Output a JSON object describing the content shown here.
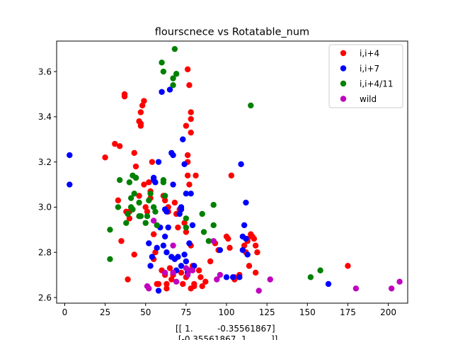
{
  "chart_data": {
    "type": "scatter",
    "title": "flourscnece vs Rotatable_num",
    "xlabel": "[[ 1.         -0.35561867]\n [-0.35561867  1.        ]]",
    "ylabel": "",
    "xlim": [
      -5,
      212
    ],
    "ylim": [
      2.575,
      3.735
    ],
    "xticks": [
      0,
      25,
      50,
      75,
      100,
      125,
      150,
      175,
      200
    ],
    "yticks": [
      2.6,
      2.8,
      3.0,
      3.2,
      3.4,
      3.6
    ],
    "grid": false,
    "legend_position": "top-right",
    "series": [
      {
        "name": "i,i+4",
        "color": "#ff0000",
        "points": [
          [
            25,
            3.22
          ],
          [
            31,
            3.28
          ],
          [
            34,
            3.27
          ],
          [
            33,
            3.03
          ],
          [
            35,
            2.85
          ],
          [
            37,
            3.5
          ],
          [
            37,
            3.49
          ],
          [
            38,
            2.98
          ],
          [
            40,
            2.98
          ],
          [
            40,
            2.95
          ],
          [
            39,
            2.68
          ],
          [
            43,
            3.24
          ],
          [
            43,
            2.79
          ],
          [
            44,
            3.18
          ],
          [
            46,
            3.05
          ],
          [
            46,
            3.38
          ],
          [
            47,
            3.42
          ],
          [
            47,
            3.37
          ],
          [
            47,
            3.36
          ],
          [
            48,
            3.45
          ],
          [
            49,
            3.47
          ],
          [
            49,
            3.1
          ],
          [
            50,
            3.0
          ],
          [
            51,
            2.98
          ],
          [
            52,
            3.11
          ],
          [
            53,
            3.07
          ],
          [
            53,
            3.04
          ],
          [
            54,
            3.2
          ],
          [
            55,
            2.88
          ],
          [
            55,
            2.77
          ],
          [
            56,
            2.8
          ],
          [
            57,
            2.66
          ],
          [
            58,
            2.66
          ],
          [
            60,
            2.72
          ],
          [
            61,
            3.05
          ],
          [
            62,
            3.03
          ],
          [
            62,
            2.7
          ],
          [
            63,
            2.66
          ],
          [
            63,
            2.64
          ],
          [
            64,
            3.0
          ],
          [
            64,
            2.98
          ],
          [
            65,
            2.73
          ],
          [
            66,
            2.68
          ],
          [
            67,
            2.7
          ],
          [
            68,
            3.02
          ],
          [
            69,
            2.97
          ],
          [
            70,
            2.91
          ],
          [
            71,
            2.99
          ],
          [
            72,
            2.71
          ],
          [
            73,
            2.66
          ],
          [
            74,
            2.93
          ],
          [
            75,
            3.36
          ],
          [
            75,
            2.89
          ],
          [
            75,
            2.69
          ],
          [
            76,
            3.61
          ],
          [
            76,
            3.23
          ],
          [
            76,
            3.2
          ],
          [
            76,
            3.14
          ],
          [
            77,
            3.54
          ],
          [
            77,
            3.1
          ],
          [
            78,
            3.42
          ],
          [
            78,
            3.39
          ],
          [
            78,
            3.33
          ],
          [
            78,
            2.83
          ],
          [
            78,
            2.64
          ],
          [
            79,
            2.74
          ],
          [
            80,
            2.66
          ],
          [
            80,
            2.65
          ],
          [
            81,
            3.14
          ],
          [
            83,
            2.72
          ],
          [
            84,
            2.69
          ],
          [
            85,
            2.65
          ],
          [
            87,
            2.67
          ],
          [
            90,
            2.76
          ],
          [
            93,
            2.84
          ],
          [
            95,
            2.81
          ],
          [
            100,
            2.87
          ],
          [
            101,
            2.86
          ],
          [
            102,
            2.82
          ],
          [
            103,
            3.14
          ],
          [
            105,
            2.69
          ],
          [
            105,
            2.68
          ],
          [
            108,
            2.7
          ],
          [
            111,
            2.83
          ],
          [
            112,
            2.8
          ],
          [
            113,
            2.86
          ],
          [
            113,
            2.85
          ],
          [
            114,
            2.74
          ],
          [
            115,
            2.88
          ],
          [
            116,
            2.87
          ],
          [
            117,
            2.86
          ],
          [
            118,
            2.71
          ],
          [
            118,
            2.83
          ],
          [
            119,
            2.8
          ],
          [
            175,
            2.74
          ]
        ]
      },
      {
        "name": "i,i+7",
        "color": "#0000ff",
        "points": [
          [
            3,
            3.23
          ],
          [
            3,
            3.1
          ],
          [
            52,
            2.84
          ],
          [
            53,
            2.74
          ],
          [
            54,
            2.78
          ],
          [
            55,
            3.13
          ],
          [
            55,
            3.12
          ],
          [
            56,
            3.11
          ],
          [
            57,
            2.82
          ],
          [
            58,
            2.63
          ],
          [
            58,
            3.2
          ],
          [
            59,
            2.91
          ],
          [
            60,
            3.51
          ],
          [
            61,
            2.83
          ],
          [
            62,
            2.87
          ],
          [
            62,
            2.99
          ],
          [
            63,
            2.8
          ],
          [
            63,
            2.98
          ],
          [
            64,
            2.91
          ],
          [
            65,
            3.52
          ],
          [
            66,
            2.78
          ],
          [
            66,
            3.24
          ],
          [
            67,
            3.23
          ],
          [
            67,
            3.1
          ],
          [
            68,
            2.77
          ],
          [
            69,
            2.72
          ],
          [
            70,
            2.78
          ],
          [
            71,
            2.97
          ],
          [
            72,
            2.74
          ],
          [
            72,
            2.99
          ],
          [
            72,
            3.0
          ],
          [
            73,
            3.3
          ],
          [
            74,
            2.79
          ],
          [
            74,
            3.19
          ],
          [
            75,
            2.76
          ],
          [
            75,
            3.06
          ],
          [
            76,
            2.71
          ],
          [
            77,
            2.84
          ],
          [
            78,
            3.06
          ],
          [
            79,
            2.92
          ],
          [
            80,
            2.74
          ],
          [
            96,
            2.81
          ],
          [
            100,
            2.69
          ],
          [
            104,
            2.69
          ],
          [
            108,
            2.69
          ],
          [
            109,
            3.19
          ],
          [
            110,
            2.87
          ],
          [
            110,
            2.81
          ],
          [
            111,
            2.92
          ],
          [
            112,
            2.86
          ],
          [
            112,
            3.02
          ],
          [
            113,
            2.79
          ],
          [
            163,
            2.66
          ]
        ]
      },
      {
        "name": "i,i+4/11",
        "color": "#008000",
        "points": [
          [
            28,
            2.9
          ],
          [
            28,
            2.77
          ],
          [
            33,
            3.0
          ],
          [
            34,
            3.12
          ],
          [
            38,
            2.93
          ],
          [
            39,
            2.97
          ],
          [
            40,
            3.11
          ],
          [
            41,
            3.04
          ],
          [
            41,
            3.0
          ],
          [
            42,
            3.14
          ],
          [
            42,
            2.99
          ],
          [
            43,
            3.06
          ],
          [
            44,
            3.13
          ],
          [
            44,
            3.13
          ],
          [
            46,
            3.02
          ],
          [
            46,
            2.96
          ],
          [
            47,
            2.96
          ],
          [
            50,
            2.93
          ],
          [
            51,
            2.96
          ],
          [
            52,
            3.03
          ],
          [
            53,
            3.06
          ],
          [
            55,
            3.0
          ],
          [
            56,
            2.98
          ],
          [
            57,
            2.92
          ],
          [
            60,
            3.64
          ],
          [
            61,
            3.6
          ],
          [
            61,
            3.12
          ],
          [
            61,
            3.11
          ],
          [
            62,
            3.05
          ],
          [
            67,
            3.54
          ],
          [
            67,
            3.57
          ],
          [
            68,
            3.7
          ],
          [
            69,
            3.59
          ],
          [
            75,
            2.95
          ],
          [
            75,
            2.91
          ],
          [
            85,
            2.97
          ],
          [
            86,
            2.89
          ],
          [
            89,
            2.85
          ],
          [
            92,
            3.01
          ],
          [
            92,
            2.92
          ],
          [
            115,
            3.45
          ],
          [
            152,
            2.69
          ],
          [
            158,
            2.72
          ]
        ]
      },
      {
        "name": "wild",
        "color": "#bf00bf",
        "points": [
          [
            51,
            2.65
          ],
          [
            52,
            2.64
          ],
          [
            55,
            2.94
          ],
          [
            62,
            2.71
          ],
          [
            67,
            2.83
          ],
          [
            67,
            2.71
          ],
          [
            69,
            2.67
          ],
          [
            75,
            2.73
          ],
          [
            76,
            2.7
          ],
          [
            77,
            2.72
          ],
          [
            79,
            2.72
          ],
          [
            92,
            2.85
          ],
          [
            94,
            2.68
          ],
          [
            96,
            2.7
          ],
          [
            120,
            2.63
          ],
          [
            127,
            2.68
          ],
          [
            180,
            2.64
          ],
          [
            202,
            2.64
          ],
          [
            207,
            2.67
          ]
        ]
      }
    ]
  }
}
